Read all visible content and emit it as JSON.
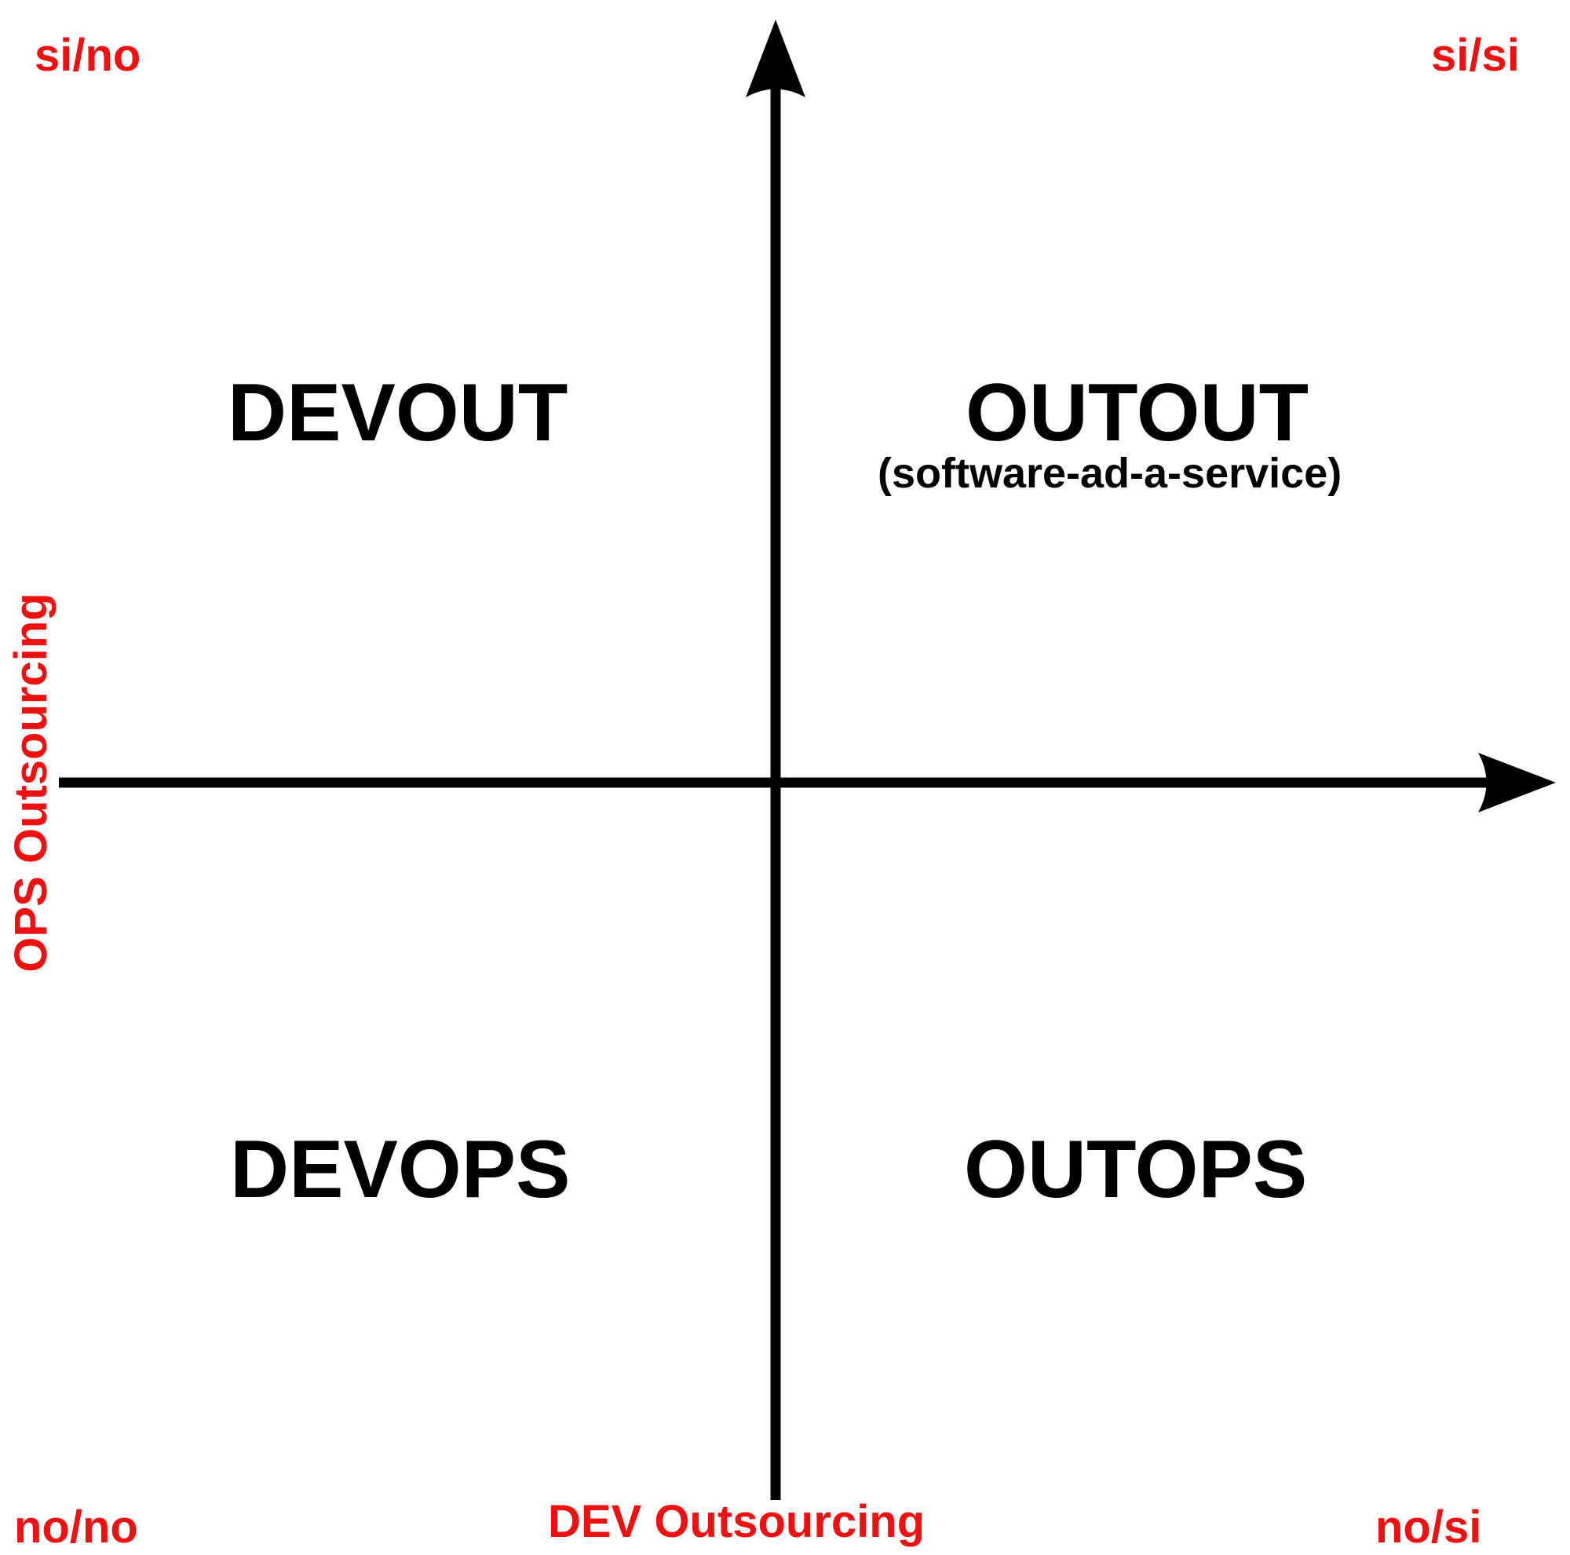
{
  "colors": {
    "label_red": "#ee1111",
    "ink": "#000000",
    "background": "#ffffff"
  },
  "corners": {
    "top_left": "si/no",
    "top_right": "si/si",
    "bottom_left": "no/no",
    "bottom_right": "no/si"
  },
  "quadrants": {
    "top_left": {
      "title": "DEVOUT"
    },
    "top_right": {
      "title": "OUTOUT",
      "subtitle": "(software-ad-a-service)"
    },
    "bottom_left": {
      "title": "DEVOPS"
    },
    "bottom_right": {
      "title": "OUTOPS"
    }
  },
  "axes": {
    "vertical_label": "OPS Outsourcing",
    "horizontal_label": "DEV Outsourcing"
  }
}
